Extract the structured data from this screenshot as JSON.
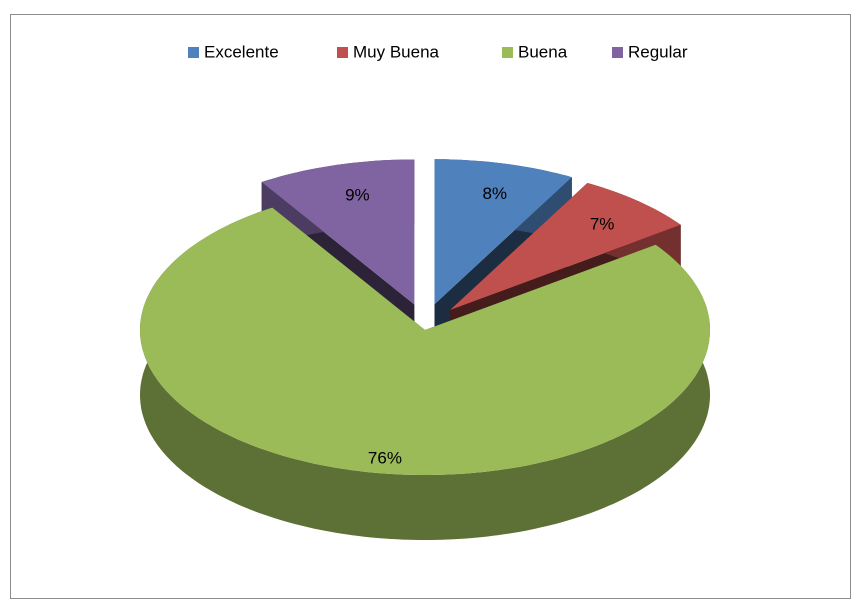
{
  "chart_data": {
    "type": "pie3d",
    "categories": [
      "Excelente",
      "Muy Buena",
      "Buena",
      "Regular"
    ],
    "values": [
      8,
      7,
      76,
      9
    ],
    "value_labels": [
      "8%",
      "7%",
      "76%",
      "9%"
    ],
    "colors": [
      "#4f81bd",
      "#c0504d",
      "#9bbb59",
      "#8064a2"
    ],
    "legend": "top"
  }
}
